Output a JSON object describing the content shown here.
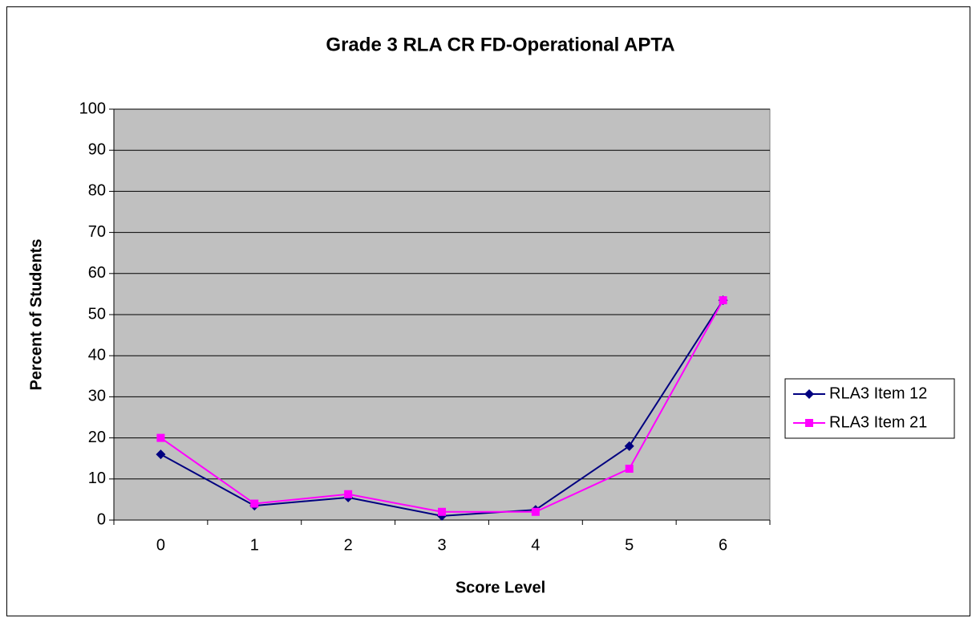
{
  "chart_data": {
    "type": "line",
    "title": "Grade 3 RLA CR FD-Operational APTA",
    "x_label": "Score Level",
    "y_label": "Percent of Students",
    "categories": [
      "0",
      "1",
      "2",
      "3",
      "4",
      "5",
      "6"
    ],
    "series": [
      {
        "name": "RLA3 Item 12",
        "color": "#000080",
        "marker": "diamond",
        "values": [
          16,
          3.5,
          5.5,
          1,
          2.5,
          18,
          53.5
        ]
      },
      {
        "name": "RLA3 Item 21",
        "color": "#ff00ff",
        "marker": "square",
        "values": [
          20,
          4,
          6.3,
          2,
          2,
          12.5,
          53.5
        ]
      }
    ],
    "ylim": [
      0,
      100
    ],
    "yticks": [
      0,
      10,
      20,
      30,
      40,
      50,
      60,
      70,
      80,
      90,
      100
    ],
    "grid": true,
    "legend": "right",
    "plot_background": "#c0c0c0"
  }
}
